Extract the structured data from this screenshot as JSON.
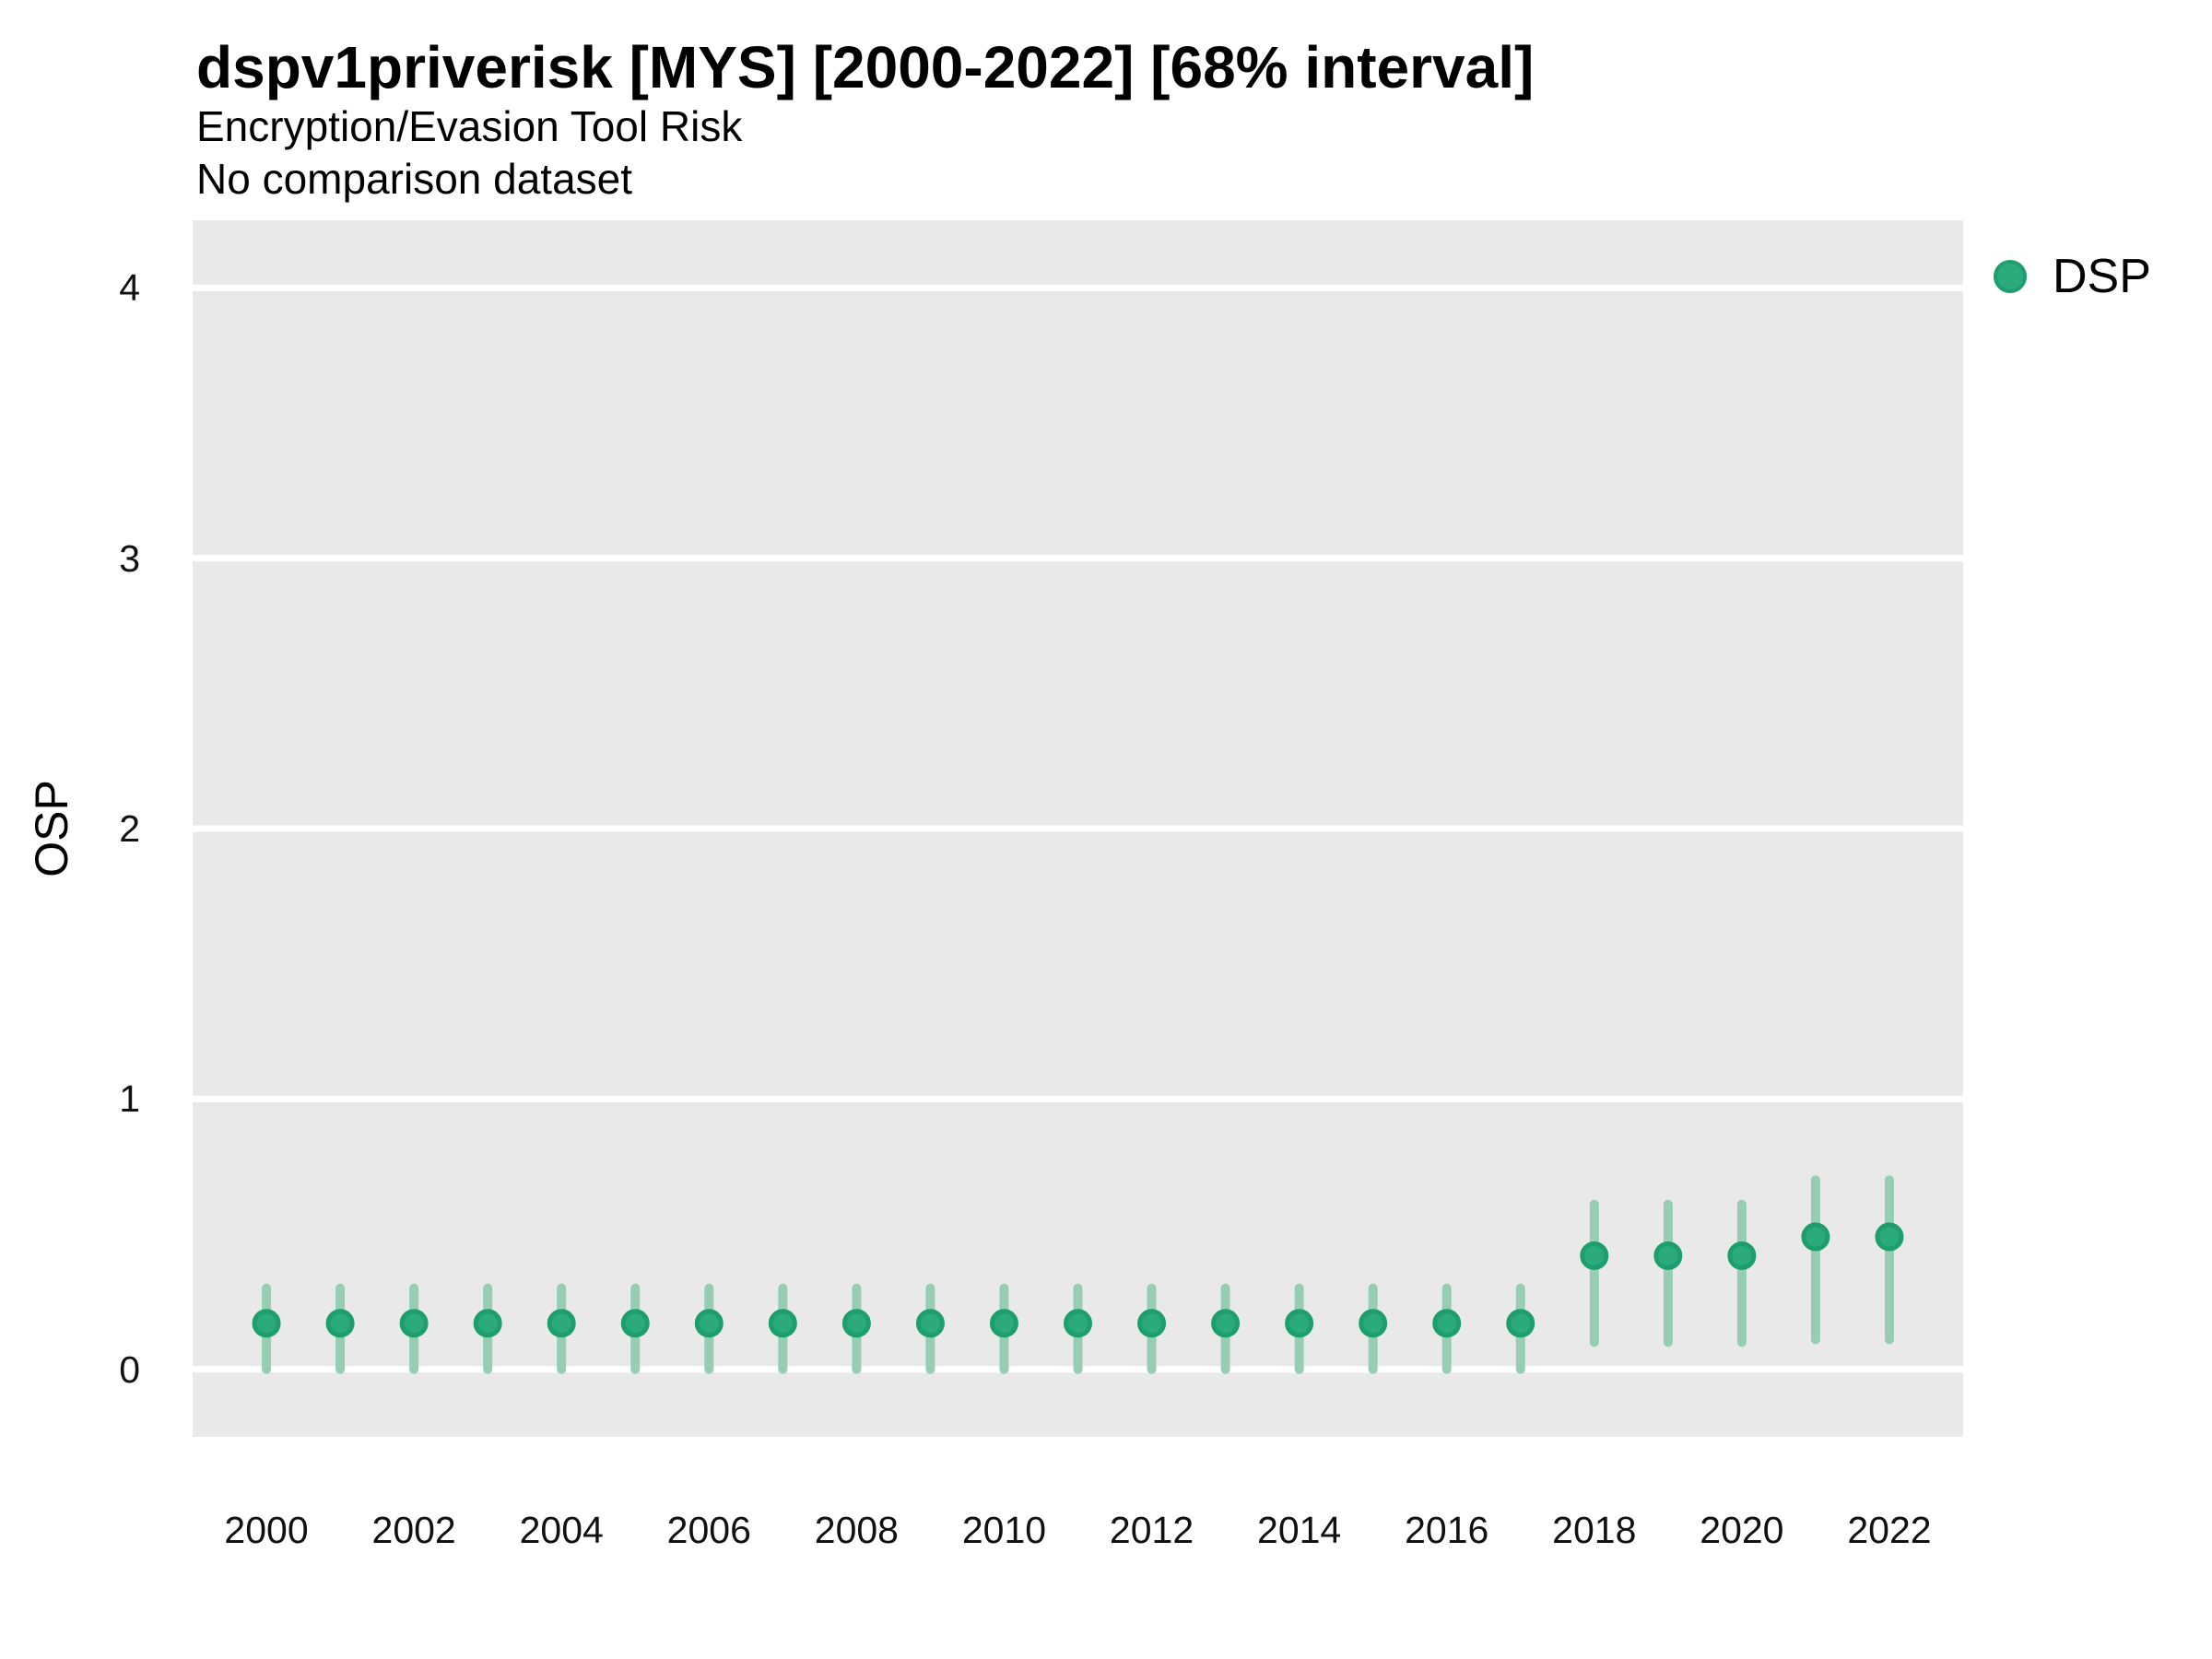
{
  "header": {
    "title": "dspv1priverisk [MYS] [2000-2022] [68% interval]",
    "subtitle": "Encryption/Evasion Tool Risk",
    "note": "No comparison dataset"
  },
  "axes": {
    "y_label": "OSP"
  },
  "legend": {
    "items": [
      {
        "label": "DSP",
        "marker": "circle"
      }
    ]
  },
  "colors": {
    "panel_bg": "#e9e9e9",
    "grid": "#ffffff",
    "point_fill": "#2bab7d",
    "point_stroke": "#1d9e6c",
    "interval_line": "#95ceb2",
    "text": "#000000"
  },
  "chart_data": {
    "type": "pointrange",
    "title": "dspv1priverisk [MYS] [2000-2022] [68% interval]",
    "subtitle": "Encryption/Evasion Tool Risk",
    "note": "No comparison dataset",
    "xlabel": "",
    "ylabel": "OSP",
    "series_name": "DSP",
    "interval_level": "68%",
    "xlim": [
      1999,
      2023
    ],
    "ylim": [
      -0.25,
      4.25
    ],
    "yticks": [
      0,
      1,
      2,
      3,
      4
    ],
    "xticks": [
      2000,
      2002,
      2004,
      2006,
      2008,
      2010,
      2012,
      2014,
      2016,
      2018,
      2020,
      2022
    ],
    "grid": "horizontal-major-only",
    "legend_position": "top-right",
    "points": [
      {
        "year": 2000,
        "value": 0.17,
        "lo": 0.0,
        "hi": 0.3
      },
      {
        "year": 2001,
        "value": 0.17,
        "lo": 0.0,
        "hi": 0.3
      },
      {
        "year": 2002,
        "value": 0.17,
        "lo": 0.0,
        "hi": 0.3
      },
      {
        "year": 2003,
        "value": 0.17,
        "lo": 0.0,
        "hi": 0.3
      },
      {
        "year": 2004,
        "value": 0.17,
        "lo": 0.0,
        "hi": 0.3
      },
      {
        "year": 2005,
        "value": 0.17,
        "lo": 0.0,
        "hi": 0.3
      },
      {
        "year": 2006,
        "value": 0.17,
        "lo": 0.0,
        "hi": 0.3
      },
      {
        "year": 2007,
        "value": 0.17,
        "lo": 0.0,
        "hi": 0.3
      },
      {
        "year": 2008,
        "value": 0.17,
        "lo": 0.0,
        "hi": 0.3
      },
      {
        "year": 2009,
        "value": 0.17,
        "lo": 0.0,
        "hi": 0.3
      },
      {
        "year": 2010,
        "value": 0.17,
        "lo": 0.0,
        "hi": 0.3
      },
      {
        "year": 2011,
        "value": 0.17,
        "lo": 0.0,
        "hi": 0.3
      },
      {
        "year": 2012,
        "value": 0.17,
        "lo": 0.0,
        "hi": 0.3
      },
      {
        "year": 2013,
        "value": 0.17,
        "lo": 0.0,
        "hi": 0.3
      },
      {
        "year": 2014,
        "value": 0.17,
        "lo": 0.0,
        "hi": 0.3
      },
      {
        "year": 2015,
        "value": 0.17,
        "lo": 0.0,
        "hi": 0.3
      },
      {
        "year": 2016,
        "value": 0.17,
        "lo": 0.0,
        "hi": 0.3
      },
      {
        "year": 2017,
        "value": 0.17,
        "lo": 0.0,
        "hi": 0.3
      },
      {
        "year": 2018,
        "value": 0.42,
        "lo": 0.1,
        "hi": 0.61
      },
      {
        "year": 2019,
        "value": 0.42,
        "lo": 0.1,
        "hi": 0.61
      },
      {
        "year": 2020,
        "value": 0.42,
        "lo": 0.1,
        "hi": 0.61
      },
      {
        "year": 2021,
        "value": 0.49,
        "lo": 0.11,
        "hi": 0.7
      },
      {
        "year": 2022,
        "value": 0.49,
        "lo": 0.11,
        "hi": 0.7
      }
    ]
  }
}
